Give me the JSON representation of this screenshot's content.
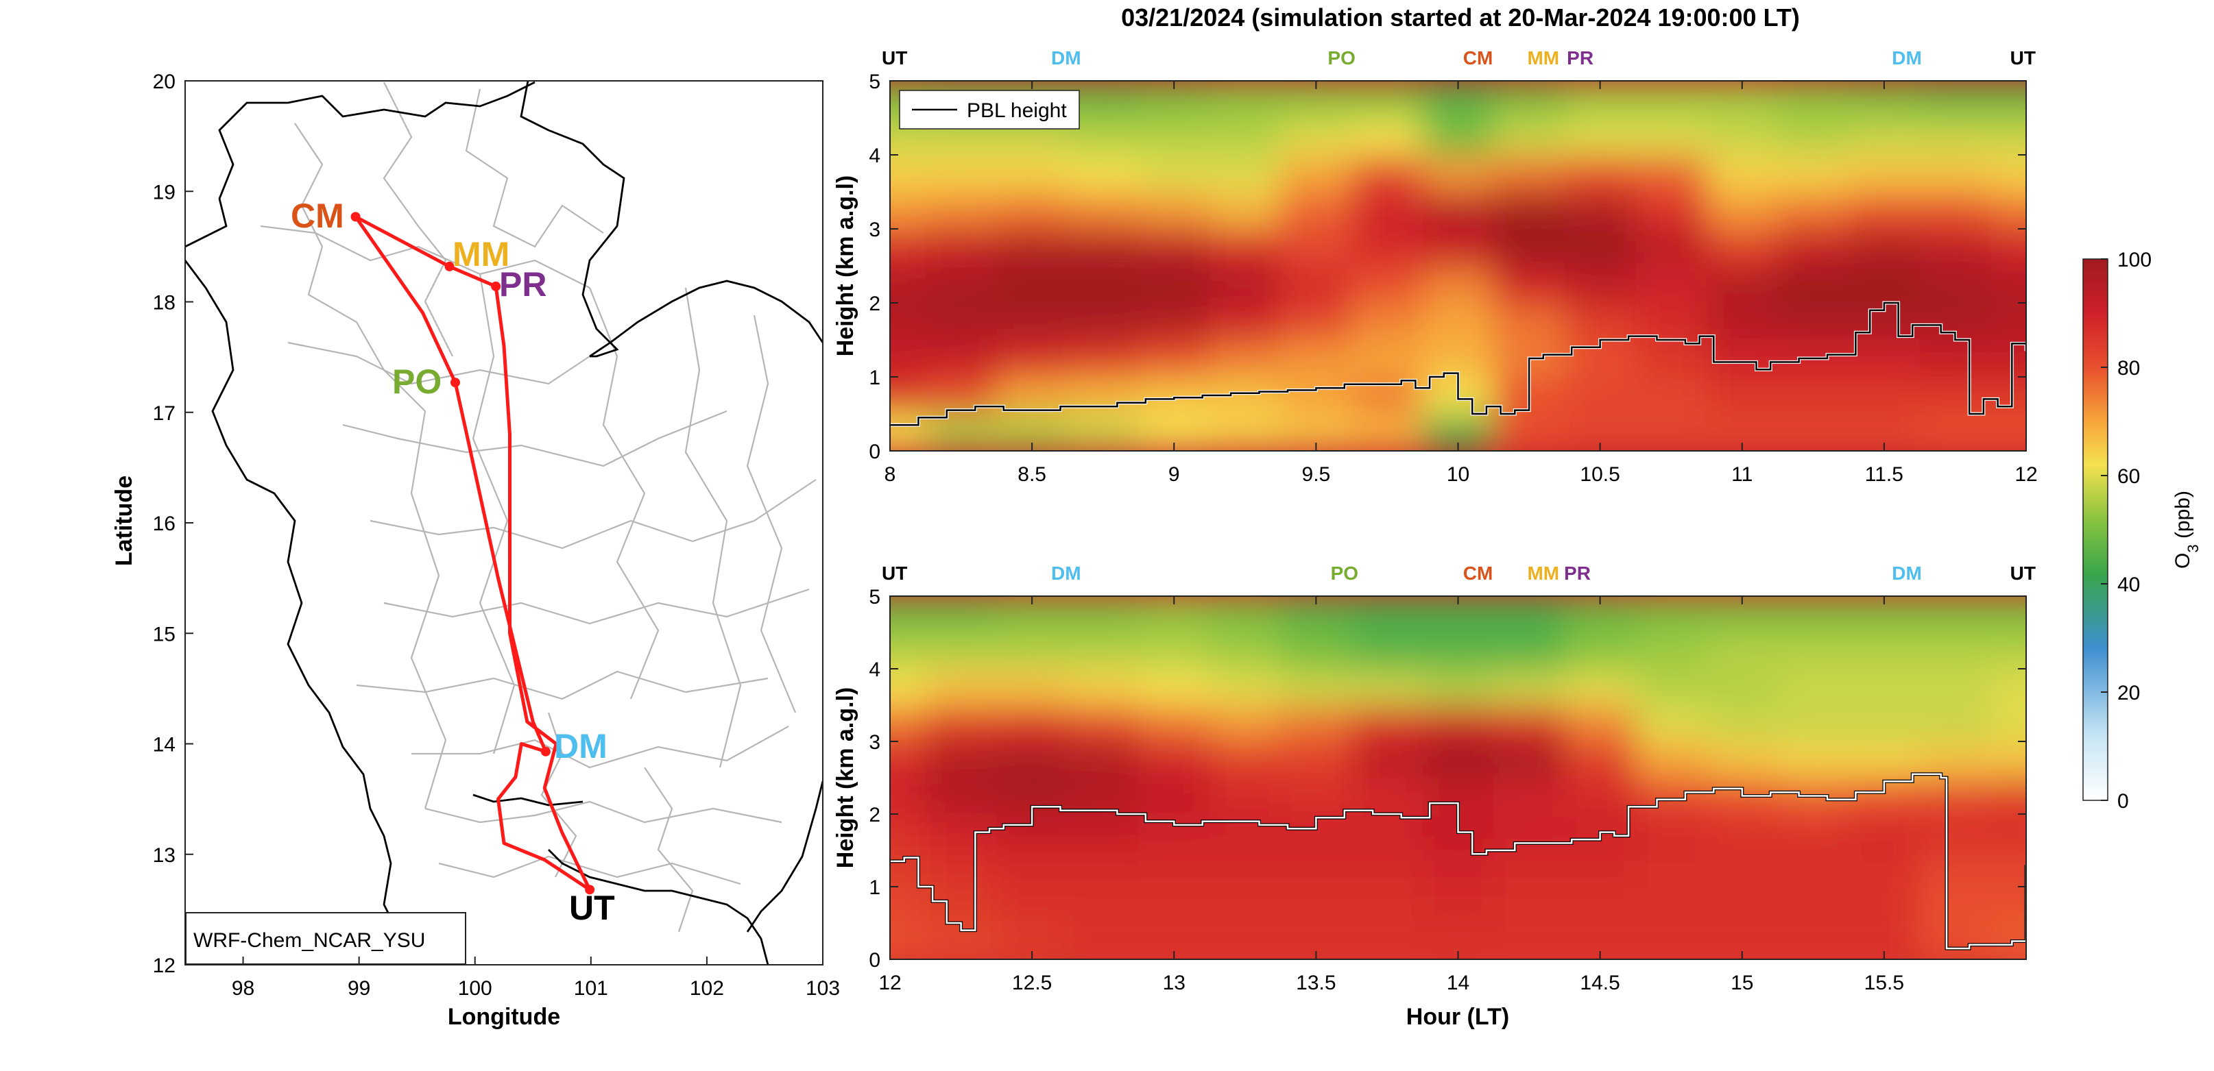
{
  "figure": {
    "title": "03/21/2024 (simulation started at 20-Mar-2024 19:00:00 LT)"
  },
  "colors": {
    "CM": "#d95319",
    "MM": "#edb120",
    "PR": "#7e2f8e",
    "PO": "#77ac30",
    "DM": "#4dbeee",
    "UT": "#000000",
    "route": "#ff1a1a"
  },
  "map": {
    "xlabel": "Longitude",
    "ylabel": "Latitude",
    "xlim": [
      97.5,
      103
    ],
    "ylim": [
      12,
      20
    ],
    "xticks": [
      "98",
      "99",
      "100",
      "101",
      "102",
      "103"
    ],
    "yticks": [
      "12",
      "13",
      "14",
      "15",
      "16",
      "17",
      "18",
      "19",
      "20"
    ],
    "model_label": "WRF-Chem_NCAR_YSU",
    "sites": [
      {
        "code": "CM",
        "lon": 98.97,
        "lat": 18.77
      },
      {
        "code": "MM",
        "lon": 99.78,
        "lat": 18.32
      },
      {
        "code": "PR",
        "lon": 100.18,
        "lat": 18.14
      },
      {
        "code": "PO",
        "lon": 99.83,
        "lat": 17.27
      },
      {
        "code": "DM",
        "lon": 100.61,
        "lat": 13.93
      },
      {
        "code": "UT",
        "lon": 100.99,
        "lat": 12.68
      }
    ],
    "route": [
      [
        100.99,
        12.68
      ],
      [
        100.6,
        12.95
      ],
      [
        100.25,
        13.1
      ],
      [
        100.2,
        13.5
      ],
      [
        100.35,
        13.7
      ],
      [
        100.4,
        14.0
      ],
      [
        100.61,
        13.93
      ],
      [
        100.5,
        14.2
      ],
      [
        100.2,
        15.5
      ],
      [
        99.95,
        16.7
      ],
      [
        99.83,
        17.27
      ],
      [
        99.55,
        17.9
      ],
      [
        98.97,
        18.77
      ],
      [
        99.78,
        18.32
      ],
      [
        100.18,
        18.14
      ],
      [
        100.25,
        17.6
      ],
      [
        100.3,
        16.8
      ],
      [
        100.3,
        15.0
      ],
      [
        100.45,
        14.2
      ],
      [
        100.7,
        14.0
      ],
      [
        100.6,
        13.6
      ],
      [
        100.75,
        13.2
      ],
      [
        100.99,
        12.68
      ]
    ]
  },
  "chart_data": [
    {
      "type": "heatmap",
      "panel": "top",
      "xlabel": "",
      "ylabel": "Height (km a.g.l)",
      "xlim": [
        8,
        12
      ],
      "ylim": [
        0,
        5
      ],
      "xticks": [
        "8",
        "8.5",
        "9",
        "9.5",
        "10",
        "10.5",
        "11",
        "11.5",
        "12"
      ],
      "yticks": [
        "0",
        "1",
        "2",
        "3",
        "4",
        "5"
      ],
      "legend": {
        "entry": "PBL height",
        "placement": "top-left"
      },
      "site_labels": [
        {
          "label": "UT",
          "x": 8.0
        },
        {
          "label": "DM",
          "x": 8.62
        },
        {
          "label": "PO",
          "x": 9.59
        },
        {
          "label": "CM",
          "x": 10.07
        },
        {
          "label": "MM",
          "x": 10.3
        },
        {
          "label": "PR",
          "x": 10.43
        },
        {
          "label": "DM",
          "x": 11.58
        },
        {
          "label": "UT",
          "x": 11.96
        }
      ],
      "pbl_height": {
        "x": [
          8.0,
          8.1,
          8.2,
          8.3,
          8.4,
          8.5,
          8.6,
          8.7,
          8.8,
          8.9,
          9.0,
          9.1,
          9.2,
          9.3,
          9.4,
          9.5,
          9.6,
          9.7,
          9.8,
          9.85,
          9.9,
          9.95,
          10.0,
          10.05,
          10.1,
          10.15,
          10.2,
          10.25,
          10.3,
          10.4,
          10.5,
          10.6,
          10.7,
          10.8,
          10.85,
          10.9,
          11.0,
          11.05,
          11.1,
          11.2,
          11.3,
          11.4,
          11.45,
          11.5,
          11.55,
          11.6,
          11.7,
          11.75,
          11.8,
          11.85,
          11.9,
          11.95,
          12.0
        ],
        "y": [
          0.35,
          0.45,
          0.55,
          0.6,
          0.55,
          0.55,
          0.6,
          0.6,
          0.65,
          0.7,
          0.72,
          0.75,
          0.78,
          0.8,
          0.82,
          0.85,
          0.9,
          0.9,
          0.95,
          0.85,
          1.0,
          1.05,
          0.7,
          0.5,
          0.6,
          0.5,
          0.55,
          1.25,
          1.3,
          1.4,
          1.5,
          1.55,
          1.5,
          1.45,
          1.55,
          1.2,
          1.2,
          1.1,
          1.2,
          1.25,
          1.3,
          1.6,
          1.9,
          2.0,
          1.55,
          1.7,
          1.6,
          1.5,
          0.5,
          0.7,
          0.6,
          1.45,
          1.35
        ]
      },
      "ozone_field": {
        "x": [
          8.0,
          8.25,
          8.5,
          8.75,
          9.0,
          9.25,
          9.5,
          9.75,
          10.0,
          10.25,
          10.5,
          10.75,
          11.0,
          11.25,
          11.5,
          11.75,
          12.0
        ],
        "y": [
          0.25,
          0.75,
          1.25,
          1.75,
          2.25,
          2.75,
          3.25,
          3.75,
          4.25,
          4.75
        ],
        "z": [
          [
            62,
            55,
            55,
            58,
            62,
            64,
            66,
            68,
            45,
            80,
            82,
            82,
            82,
            82,
            82,
            80,
            80
          ],
          [
            85,
            80,
            70,
            68,
            66,
            66,
            70,
            75,
            62,
            80,
            82,
            82,
            85,
            85,
            85,
            85,
            85
          ],
          [
            92,
            92,
            88,
            85,
            80,
            75,
            72,
            70,
            68,
            75,
            80,
            85,
            90,
            90,
            90,
            92,
            92
          ],
          [
            96,
            98,
            98,
            98,
            96,
            90,
            82,
            74,
            70,
            76,
            84,
            88,
            96,
            98,
            98,
            98,
            96
          ],
          [
            96,
            98,
            100,
            100,
            100,
            96,
            88,
            80,
            74,
            90,
            94,
            90,
            96,
            100,
            100,
            98,
            96
          ],
          [
            88,
            92,
            96,
            96,
            94,
            88,
            82,
            88,
            92,
            100,
            100,
            94,
            84,
            92,
            96,
            94,
            90
          ],
          [
            72,
            74,
            76,
            74,
            72,
            68,
            78,
            90,
            95,
            100,
            96,
            86,
            72,
            76,
            80,
            80,
            76
          ],
          [
            64,
            64,
            64,
            62,
            60,
            60,
            70,
            82,
            72,
            76,
            80,
            78,
            64,
            64,
            66,
            66,
            64
          ],
          [
            58,
            58,
            58,
            56,
            56,
            56,
            60,
            62,
            50,
            58,
            60,
            60,
            58,
            56,
            58,
            58,
            58
          ],
          [
            50,
            48,
            48,
            48,
            50,
            52,
            52,
            52,
            46,
            50,
            54,
            54,
            54,
            52,
            50,
            48,
            48
          ]
        ]
      }
    },
    {
      "type": "heatmap",
      "panel": "bottom",
      "xlabel": "Hour (LT)",
      "ylabel": "Height (km a.g.l)",
      "xlim": [
        12,
        16
      ],
      "ylim": [
        0,
        5
      ],
      "xticks": [
        "12",
        "12.5",
        "13",
        "13.5",
        "14",
        "14.5",
        "15",
        "15.5"
      ],
      "yticks": [
        "0",
        "1",
        "2",
        "3",
        "4",
        "5"
      ],
      "site_labels": [
        {
          "label": "UT",
          "x": 12.0
        },
        {
          "label": "DM",
          "x": 12.62
        },
        {
          "label": "PO",
          "x": 13.6
        },
        {
          "label": "CM",
          "x": 14.07
        },
        {
          "label": "MM",
          "x": 14.3
        },
        {
          "label": "PR",
          "x": 14.42
        },
        {
          "label": "DM",
          "x": 15.58
        },
        {
          "label": "UT",
          "x": 15.96
        }
      ],
      "pbl_height": {
        "x": [
          12.0,
          12.05,
          12.1,
          12.15,
          12.2,
          12.25,
          12.3,
          12.35,
          12.4,
          12.5,
          12.6,
          12.7,
          12.8,
          12.9,
          13.0,
          13.1,
          13.2,
          13.3,
          13.4,
          13.5,
          13.6,
          13.7,
          13.8,
          13.9,
          14.0,
          14.05,
          14.1,
          14.2,
          14.3,
          14.4,
          14.5,
          14.55,
          14.6,
          14.7,
          14.8,
          14.9,
          15.0,
          15.1,
          15.2,
          15.3,
          15.4,
          15.5,
          15.6,
          15.65,
          15.7,
          15.72,
          15.8,
          15.9,
          15.95,
          16.0
        ],
        "y": [
          1.35,
          1.4,
          1.0,
          0.8,
          0.5,
          0.4,
          1.75,
          1.8,
          1.85,
          2.1,
          2.05,
          2.05,
          2.0,
          1.9,
          1.85,
          1.9,
          1.9,
          1.85,
          1.8,
          1.95,
          2.05,
          2.0,
          1.95,
          2.15,
          1.75,
          1.45,
          1.5,
          1.6,
          1.6,
          1.65,
          1.75,
          1.7,
          2.1,
          2.2,
          2.3,
          2.35,
          2.25,
          2.3,
          2.25,
          2.2,
          2.3,
          2.45,
          2.55,
          2.55,
          2.5,
          0.15,
          0.2,
          0.2,
          0.25,
          1.3
        ]
      },
      "ozone_field": {
        "x": [
          12.0,
          12.25,
          12.5,
          12.75,
          13.0,
          13.25,
          13.5,
          13.75,
          14.0,
          14.25,
          14.5,
          14.75,
          15.0,
          15.25,
          15.5,
          15.75,
          16.0
        ],
        "y": [
          0.25,
          0.75,
          1.25,
          1.75,
          2.25,
          2.75,
          3.25,
          3.75,
          4.25,
          4.75
        ],
        "z": [
          [
            80,
            82,
            84,
            86,
            86,
            86,
            86,
            86,
            86,
            86,
            86,
            86,
            86,
            86,
            86,
            80,
            78
          ],
          [
            82,
            84,
            86,
            86,
            86,
            86,
            86,
            86,
            88,
            86,
            86,
            86,
            86,
            86,
            86,
            80,
            80
          ],
          [
            84,
            86,
            88,
            88,
            88,
            88,
            88,
            88,
            90,
            88,
            88,
            86,
            86,
            86,
            86,
            82,
            82
          ],
          [
            86,
            90,
            92,
            92,
            90,
            90,
            90,
            90,
            92,
            90,
            90,
            88,
            86,
            86,
            88,
            86,
            86
          ],
          [
            90,
            96,
            98,
            96,
            92,
            88,
            86,
            88,
            92,
            90,
            88,
            82,
            80,
            78,
            80,
            82,
            84
          ],
          [
            88,
            96,
            98,
            96,
            90,
            84,
            84,
            94,
            100,
            98,
            84,
            70,
            66,
            64,
            64,
            66,
            66
          ],
          [
            76,
            84,
            86,
            82,
            76,
            72,
            76,
            86,
            90,
            86,
            74,
            60,
            58,
            58,
            58,
            58,
            60
          ],
          [
            62,
            66,
            66,
            64,
            62,
            60,
            58,
            58,
            56,
            58,
            60,
            56,
            56,
            58,
            58,
            58,
            60
          ],
          [
            56,
            56,
            56,
            56,
            56,
            54,
            50,
            46,
            46,
            46,
            52,
            54,
            56,
            56,
            56,
            56,
            56
          ],
          [
            48,
            48,
            50,
            50,
            52,
            50,
            46,
            44,
            44,
            44,
            48,
            50,
            50,
            50,
            50,
            50,
            50
          ]
        ]
      }
    }
  ],
  "colorbar": {
    "label_main": "O",
    "label_sub": "3",
    "label_unit": " (ppb)",
    "ticks": [
      "0",
      "20",
      "40",
      "60",
      "80",
      "100"
    ],
    "range": [
      0,
      100
    ]
  }
}
